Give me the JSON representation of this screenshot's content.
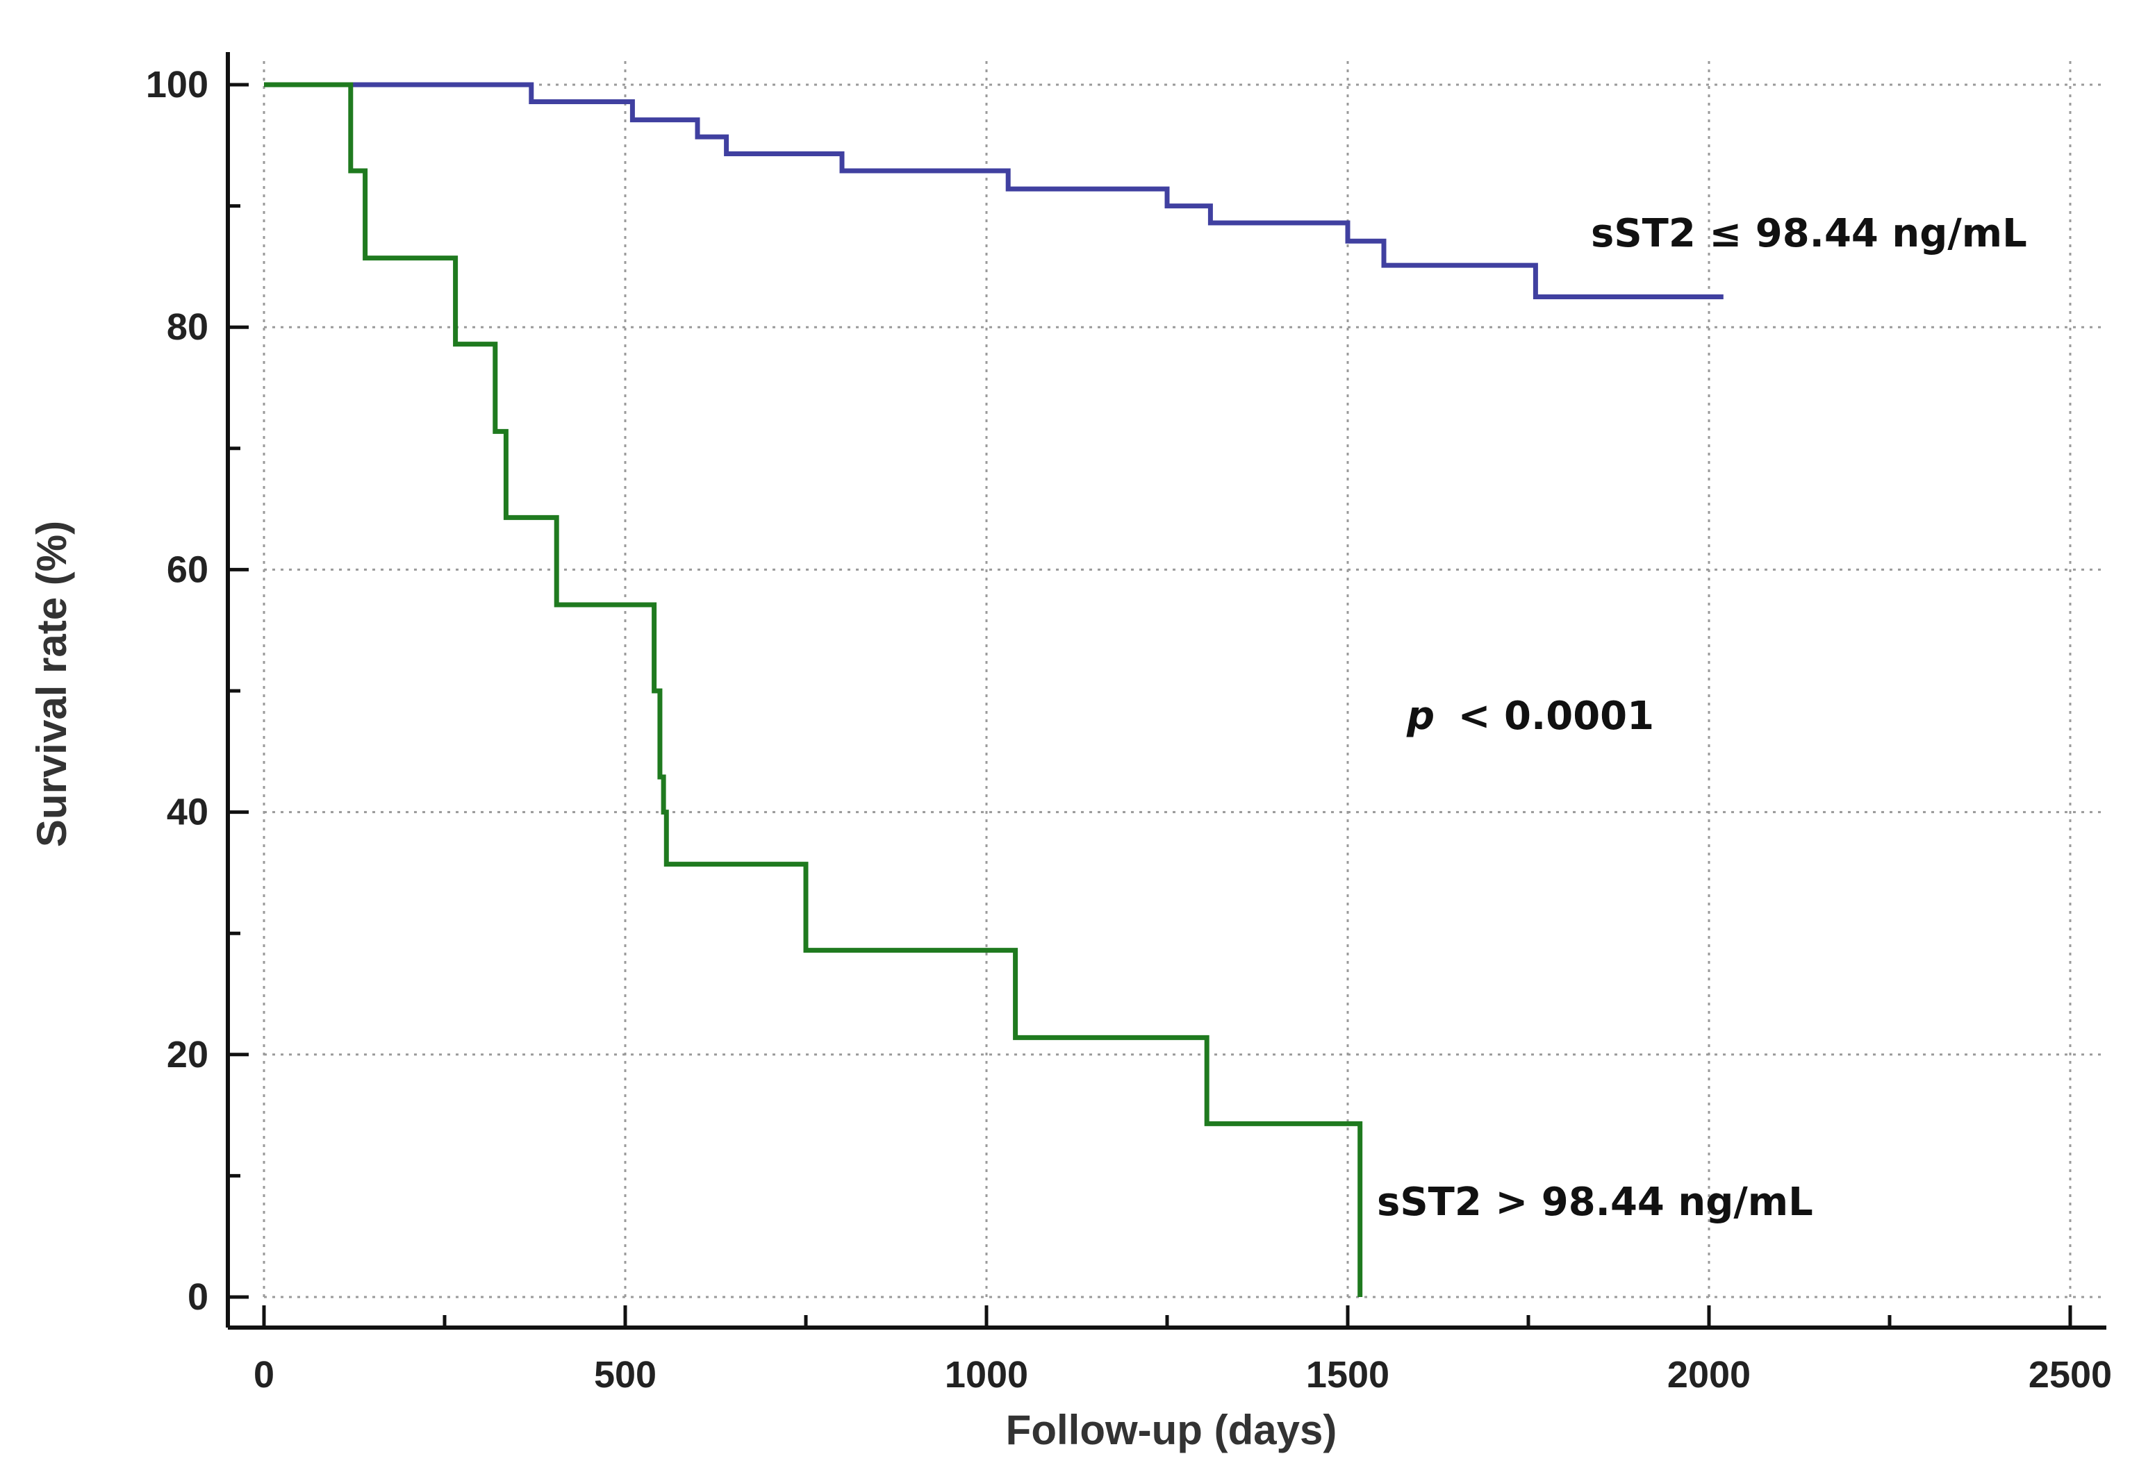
{
  "chart_data": {
    "type": "line",
    "step": true,
    "xlabel": "Follow-up (days)",
    "ylabel": "Survival rate (%)",
    "xlim": [
      0,
      2500
    ],
    "ylim": [
      0,
      100
    ],
    "xticks": [
      0,
      500,
      1000,
      1500,
      2000,
      2500
    ],
    "yticks": [
      0,
      20,
      40,
      60,
      80,
      100
    ],
    "grid": true,
    "series": [
      {
        "name": "sST2 ≤ 98.44 ng/mL",
        "color": "#4040a0",
        "x": [
          0,
          370,
          510,
          600,
          640,
          800,
          1030,
          1250,
          1310,
          1500,
          1550,
          1760,
          2020
        ],
        "y": [
          100,
          98.6,
          97.1,
          95.7,
          94.3,
          92.9,
          91.4,
          90.0,
          88.6,
          87.1,
          85.1,
          82.5,
          82.5
        ]
      },
      {
        "name": "sST2 > 98.44 ng/mL",
        "color": "#1f7a1f",
        "x": [
          0,
          120,
          140,
          265,
          320,
          335,
          405,
          540,
          548,
          553,
          557,
          750,
          1040,
          1305,
          1515,
          1517
        ],
        "y": [
          100,
          92.9,
          85.7,
          78.6,
          71.4,
          64.3,
          57.1,
          50.0,
          42.9,
          40.0,
          35.7,
          28.6,
          21.4,
          14.3,
          14.3,
          0
        ]
      }
    ],
    "annotations": {
      "label_low": "sST2 ≤ 98.44 ng/mL",
      "label_high": "sST2 > 98.44 ng/mL",
      "p_symbol": "p",
      "p_value": "< 0.0001"
    }
  }
}
